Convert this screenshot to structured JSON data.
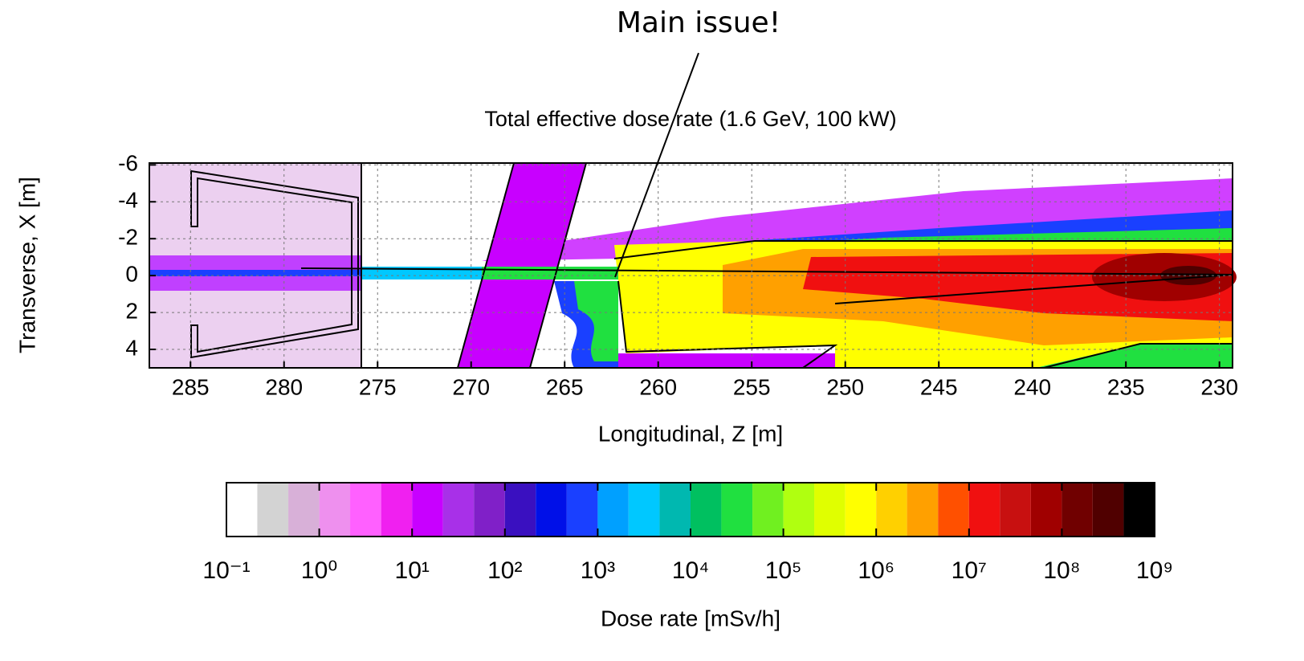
{
  "chart_data": {
    "type": "heatmap",
    "title": "Total effective dose rate (1.6 GeV, 100 kW)",
    "annotation": "Main issue!",
    "xlabel": "Longitudinal, Z [m]",
    "ylabel": "Transverse, X [m]",
    "xlim": [
      287.2,
      229.3
    ],
    "xticks": [
      285,
      280,
      275,
      270,
      265,
      260,
      255,
      250,
      245,
      240,
      235,
      230
    ],
    "ylim": [
      5,
      -6.1
    ],
    "yticks": [
      -6,
      -4,
      -2,
      0,
      2,
      4
    ],
    "grid": true,
    "colorbar": {
      "label": "Dose rate [mSv/h]",
      "scale": "log",
      "lim": [
        0.1,
        1000000000
      ],
      "levels": [
        0.1,
        0.215,
        0.464,
        1,
        2.15,
        4.64,
        10,
        21.5,
        46.4,
        100,
        215,
        464,
        1000,
        2150,
        4640,
        10000,
        21500,
        46400,
        100000,
        215000,
        464000,
        1000000,
        2150000,
        4640000,
        10000000,
        21500000,
        46400000,
        100000000,
        215000000,
        464000000,
        1000000000
      ],
      "colors": [
        "#ffffff",
        "#d3d3d3",
        "#d8b0d8",
        "#ee90ee",
        "#ff60ff",
        "#f020f0",
        "#c800ff",
        "#a830e8",
        "#8020c8",
        "#3a10c0",
        "#0010e8",
        "#1a40ff",
        "#00a0ff",
        "#00c8ff",
        "#00b8b0",
        "#00c060",
        "#20e040",
        "#70f020",
        "#b0ff10",
        "#e0ff00",
        "#ffff00",
        "#ffd000",
        "#ffa000",
        "#ff5000",
        "#f01010",
        "#c81010",
        "#a00000",
        "#700000",
        "#500000",
        "#000000"
      ],
      "ticks": [
        {
          "value": 0.1,
          "label": "10⁻¹"
        },
        {
          "value": 1,
          "label": "10⁰"
        },
        {
          "value": 10,
          "label": "10¹"
        },
        {
          "value": 100,
          "label": "10²"
        },
        {
          "value": 1000,
          "label": "10³"
        },
        {
          "value": 10000,
          "label": "10⁴"
        },
        {
          "value": 100000,
          "label": "10⁵"
        },
        {
          "value": 1000000,
          "label": "10⁶"
        },
        {
          "value": 10000000,
          "label": "10⁷"
        },
        {
          "value": 100000000,
          "label": "10⁸"
        },
        {
          "value": 1000000000,
          "label": "10⁹"
        }
      ]
    }
  }
}
